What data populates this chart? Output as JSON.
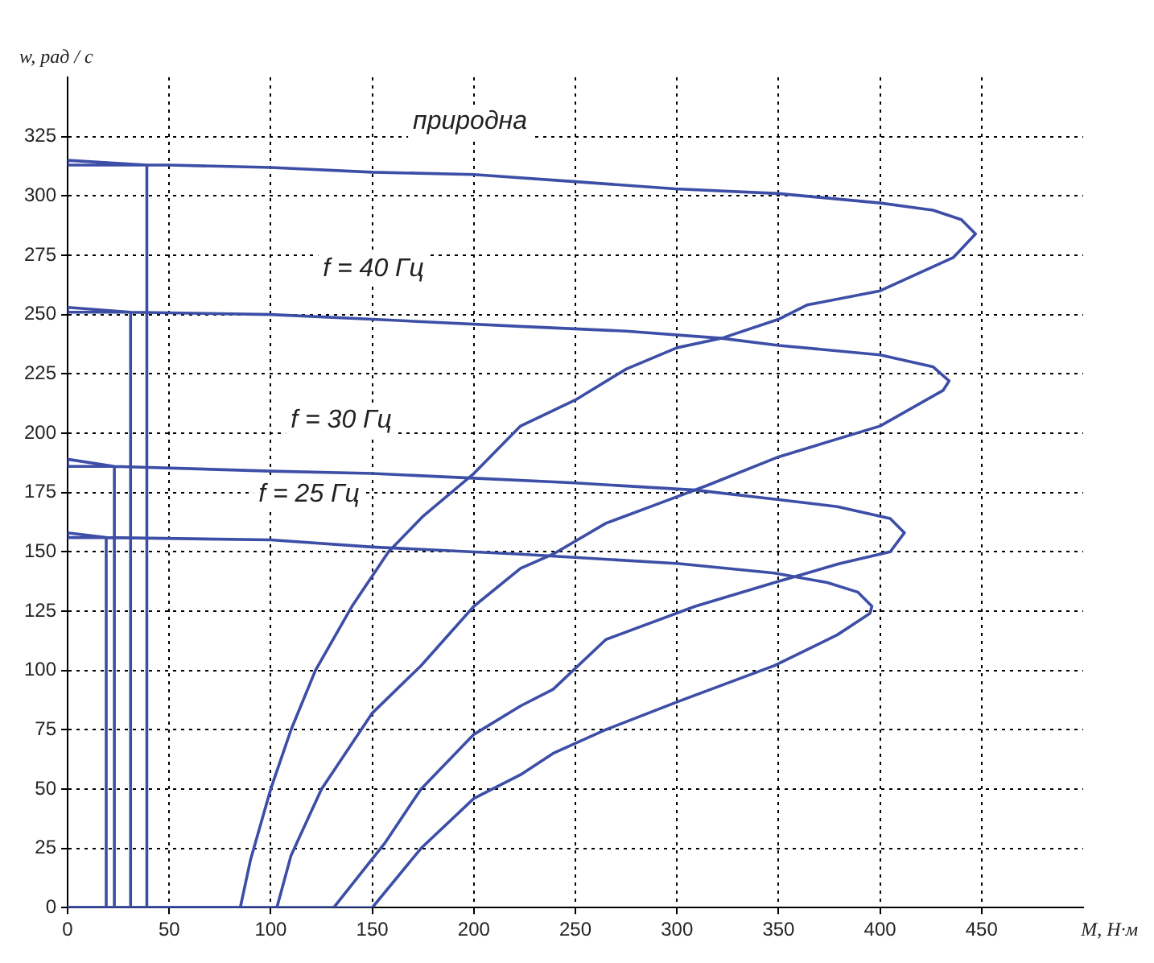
{
  "chart_data": {
    "type": "line",
    "xlabel": "M, Н·м",
    "ylabel": "w, рад / с",
    "xlim": [
      0,
      500
    ],
    "ylim": [
      0,
      350
    ],
    "xticks": [
      0,
      50,
      100,
      150,
      200,
      250,
      300,
      350,
      400,
      450
    ],
    "yticks": [
      0,
      25,
      50,
      75,
      100,
      125,
      150,
      175,
      200,
      225,
      250,
      275,
      300,
      325
    ],
    "grid": true,
    "marker": "none",
    "line_style": "solid",
    "series": [
      {
        "name": "природна",
        "color": "#3c4ea6",
        "x": [
          0,
          85,
          90,
          100,
          110,
          122,
          140,
          158,
          175,
          200,
          223,
          250,
          275,
          300,
          322,
          350,
          364,
          400,
          436,
          447,
          440,
          426,
          400,
          350,
          299,
          250,
          200,
          150,
          100,
          50,
          39,
          0,
          0,
          39,
          39
        ],
        "values": [
          0,
          0,
          20,
          50,
          75,
          100,
          127,
          150,
          165,
          183,
          203,
          214,
          227,
          236,
          240,
          248,
          254,
          260,
          274,
          284,
          290,
          294,
          297,
          301,
          303,
          306,
          309,
          310,
          312,
          313,
          313,
          315,
          313,
          313,
          0
        ]
      },
      {
        "name": "f = 40 Гц",
        "color": "#3c4ea6",
        "x": [
          0,
          103,
          110,
          125,
          150,
          174,
          200,
          223,
          239,
          265,
          290,
          315,
          350,
          400,
          431,
          434,
          426,
          400,
          350,
          322,
          275,
          223,
          150,
          100,
          31,
          0,
          0,
          31,
          31
        ],
        "values": [
          0,
          0,
          22,
          50,
          82,
          102,
          127,
          143,
          149,
          162,
          170,
          178,
          190,
          203,
          218,
          222,
          228,
          233,
          237,
          240,
          243,
          245,
          248,
          250,
          251,
          253,
          251,
          251,
          0
        ]
      },
      {
        "name": "f = 30 Гц",
        "color": "#3c4ea6",
        "x": [
          0,
          131,
          156,
          174,
          200,
          223,
          239,
          265,
          309,
          348,
          380,
          405,
          412,
          405,
          379,
          350,
          309,
          250,
          200,
          150,
          100,
          23,
          0,
          0,
          23,
          23
        ],
        "values": [
          0,
          0,
          27,
          50,
          73,
          85,
          92,
          113,
          127,
          137,
          145,
          150,
          158,
          164,
          169,
          172,
          176,
          179,
          181,
          183,
          184,
          186,
          189,
          186,
          186,
          0
        ]
      },
      {
        "name": "f = 25 Гц",
        "color": "#3c4ea6",
        "x": [
          0,
          150,
          174,
          200,
          223,
          239,
          265,
          301,
          348,
          379,
          395,
          396,
          389,
          374,
          348,
          301,
          223,
          150,
          100,
          19,
          0,
          0,
          19,
          19
        ],
        "values": [
          0,
          0,
          25,
          46,
          56,
          65,
          75,
          87,
          102,
          115,
          124,
          127,
          133,
          137,
          141,
          145,
          149,
          152,
          155,
          156,
          158,
          156,
          156,
          0
        ]
      }
    ]
  }
}
